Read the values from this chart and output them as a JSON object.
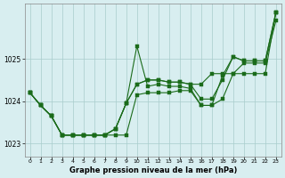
{
  "background_color": "#d8eef0",
  "grid_color": "#a8cccc",
  "line_color": "#1a6b1a",
  "title": "Graphe pression niveau de la mer (hPa)",
  "ylim": [
    1022.7,
    1026.3
  ],
  "xlim": [
    -0.5,
    23.5
  ],
  "yticks": [
    1023,
    1024,
    1025
  ],
  "xticks": [
    0,
    1,
    2,
    3,
    4,
    5,
    6,
    7,
    8,
    9,
    10,
    11,
    12,
    13,
    14,
    15,
    16,
    17,
    18,
    19,
    20,
    21,
    22,
    23
  ],
  "series": [
    [
      1024.2,
      1023.9,
      1023.65,
      1023.2,
      1023.2,
      1023.2,
      1023.2,
      1023.2,
      1023.2,
      1023.2,
      1024.15,
      1024.2,
      1024.2,
      1024.2,
      1024.25,
      1024.25,
      1023.9,
      1023.9,
      1024.05,
      1024.65,
      1024.9,
      1024.9,
      1024.9,
      1025.9
    ],
    [
      1024.2,
      1023.9,
      1023.65,
      1023.2,
      1023.2,
      1023.2,
      1023.2,
      1023.2,
      1023.35,
      1023.95,
      1025.3,
      1024.35,
      1024.4,
      1024.35,
      1024.35,
      1024.3,
      1023.9,
      1023.9,
      1024.6,
      1025.05,
      1024.95,
      1024.95,
      1024.95,
      1026.1
    ],
    [
      1024.2,
      1023.9,
      1023.65,
      1023.2,
      1023.2,
      1023.2,
      1023.2,
      1023.2,
      1023.35,
      1023.95,
      1024.4,
      1024.5,
      1024.5,
      1024.45,
      1024.45,
      1024.4,
      1024.05,
      1024.05,
      1024.5,
      1025.05,
      1024.95,
      1024.95,
      1024.95,
      1026.1
    ],
    [
      1024.2,
      1023.9,
      1023.65,
      1023.2,
      1023.2,
      1023.2,
      1023.2,
      1023.2,
      1023.35,
      1023.95,
      1024.4,
      1024.5,
      1024.5,
      1024.45,
      1024.45,
      1024.4,
      1024.4,
      1024.65,
      1024.65,
      1024.65,
      1024.65,
      1024.65,
      1024.65,
      1026.1
    ]
  ],
  "figsize": [
    3.2,
    2.0
  ],
  "dpi": 100
}
